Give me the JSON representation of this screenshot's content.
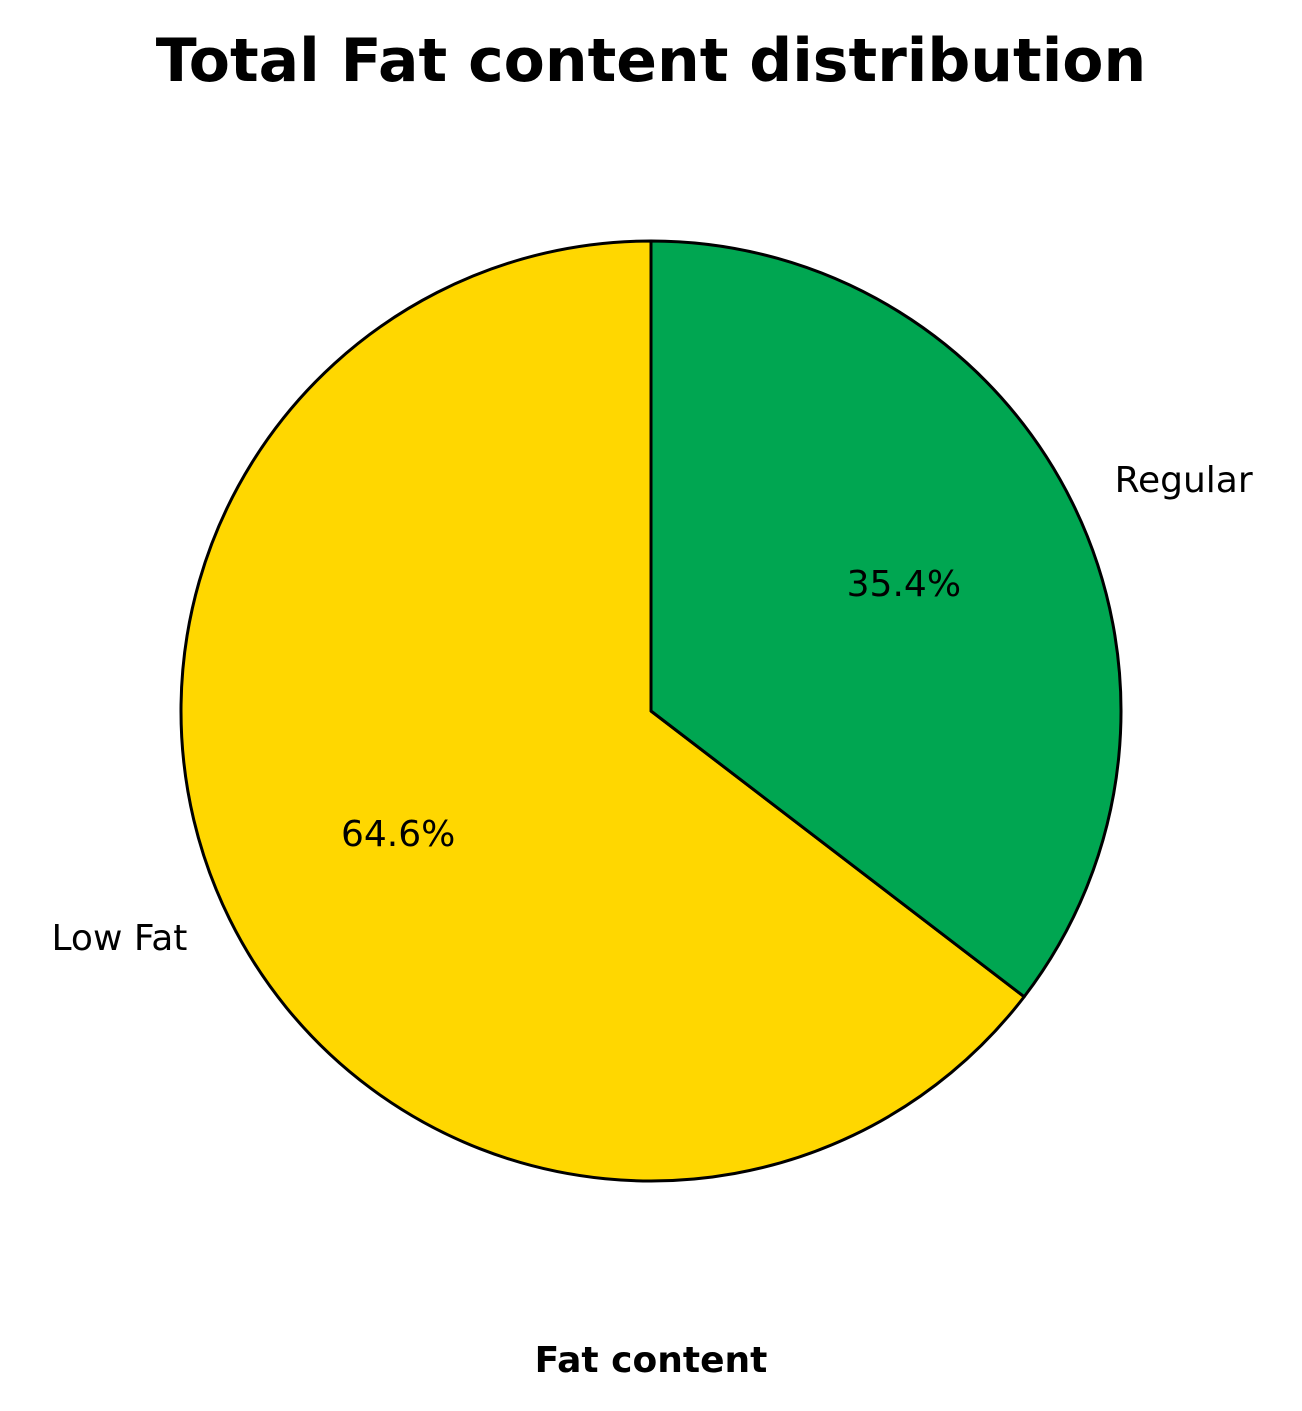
{
  "chart_data": {
    "type": "pie",
    "title": "Total Fat content distribution",
    "xlabel": "Fat content",
    "ylabel": "",
    "categories": [
      "Low Fat",
      "Regular"
    ],
    "values": [
      64.6,
      35.4
    ],
    "labels": [
      "64.6%",
      "35.4%"
    ],
    "colors": [
      "#FFD700",
      "#00A651"
    ],
    "edge_color": "#000000",
    "start_angle_deg": 90,
    "direction": "counterclockwise",
    "legend": "none"
  }
}
